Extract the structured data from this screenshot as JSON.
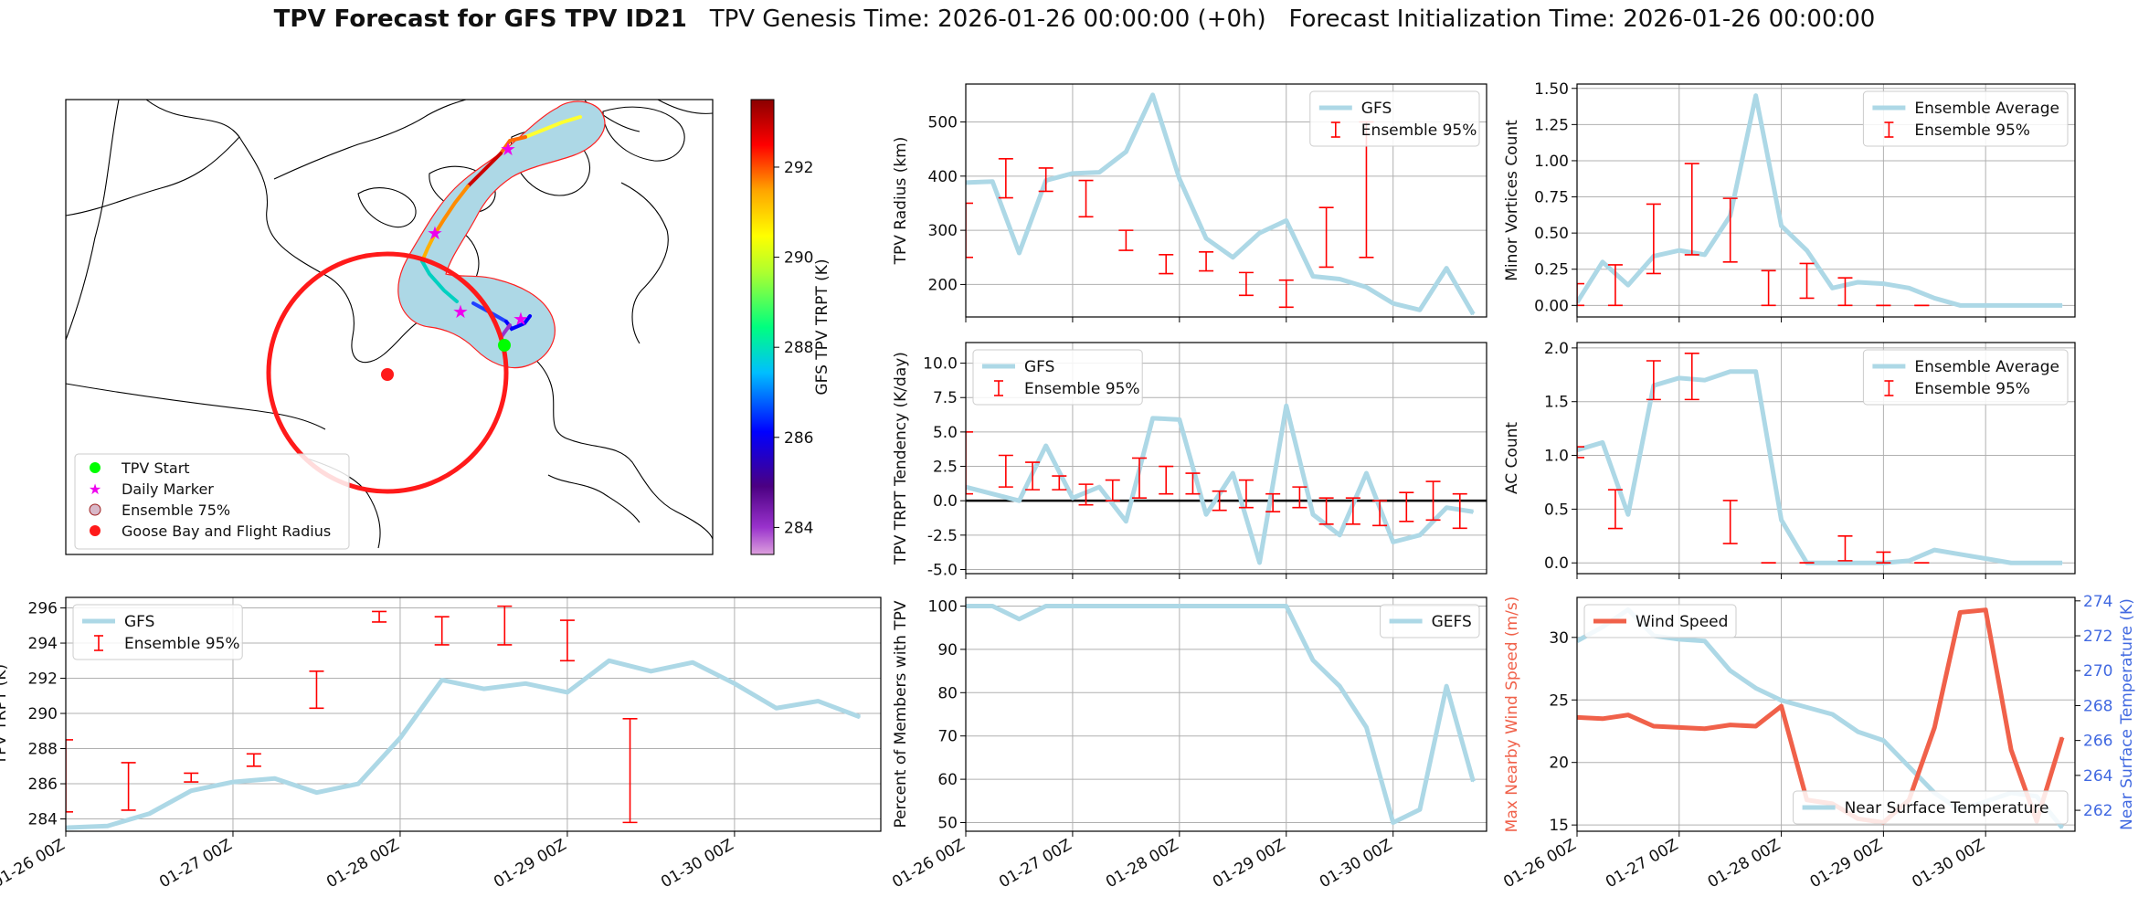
{
  "title": {
    "main": "TPV Forecast for GFS TPV ID21",
    "genesis": "TPV Genesis Time: 2026-01-26 00:00:00 (+0h)",
    "init": "Forecast Initialization Time: 2026-01-26 00:00:00"
  },
  "colors": {
    "gfs": "#add8e6",
    "ensemble": "#ff0000",
    "wind": "#f0614a",
    "temp": "#4169e1",
    "map_fill": "#add8e6"
  },
  "map": {
    "legend": [
      "TPV Start",
      "Daily Marker",
      "Ensemble 75%",
      "Goose Bay and Flight Radius"
    ],
    "legend_colors": [
      "#00ff00",
      "#ee00ee",
      "#d8b8c8",
      "#ff0000"
    ],
    "colorbar": {
      "label": "GFS TPV TRPT (K)",
      "ticks": [
        284,
        286,
        288,
        290,
        292
      ],
      "range": [
        283.4,
        293.5
      ]
    }
  },
  "time_ticks": [
    "01-26 00Z",
    "01-27 00Z",
    "01-28 00Z",
    "01-29 00Z",
    "01-30 00Z"
  ],
  "chart_data": [
    {
      "id": "radius",
      "type": "line",
      "ylabel": "TPV Radius (km)",
      "ylim": [
        140,
        570
      ],
      "yticks": [
        200,
        300,
        400,
        500
      ],
      "legend": [
        "GFS",
        "Ensemble 95%"
      ],
      "legend_pos": "top-right",
      "line": [
        388,
        390,
        258,
        392,
        405,
        407,
        445,
        550,
        395,
        285,
        250,
        295,
        318,
        215,
        210,
        195,
        165,
        153,
        230,
        145
      ],
      "errors": [
        [
          0,
          250,
          350
        ],
        [
          1.5,
          360,
          432
        ],
        [
          3,
          372,
          415
        ],
        [
          4.5,
          325,
          392
        ],
        [
          6,
          263,
          300
        ],
        [
          7.5,
          220,
          255
        ],
        [
          9,
          225,
          260
        ],
        [
          10.5,
          180,
          222
        ],
        [
          12,
          158,
          208
        ],
        [
          13.5,
          232,
          342
        ],
        [
          15,
          250,
          500
        ]
      ]
    },
    {
      "id": "minor",
      "type": "line",
      "ylabel": "Minor Vortices Count",
      "ylim": [
        -0.08,
        1.53
      ],
      "yticks": [
        0.0,
        0.25,
        0.5,
        0.75,
        1.0,
        1.25,
        1.5
      ],
      "legend": [
        "Ensemble Average",
        "Ensemble 95%"
      ],
      "legend_pos": "top-right",
      "line": [
        0.02,
        0.3,
        0.14,
        0.34,
        0.38,
        0.35,
        0.62,
        1.45,
        0.55,
        0.38,
        0.12,
        0.16,
        0.15,
        0.12,
        0.05,
        0.0,
        0.0,
        0.0,
        0.0,
        0.0
      ],
      "errors": [
        [
          0,
          0.0,
          0.15
        ],
        [
          1.5,
          0.0,
          0.28
        ],
        [
          3,
          0.22,
          0.7
        ],
        [
          4.5,
          0.35,
          0.98
        ],
        [
          6,
          0.3,
          0.74
        ],
        [
          7.5,
          0.0,
          0.24
        ],
        [
          9,
          0.05,
          0.29
        ],
        [
          10.5,
          0.0,
          0.19
        ],
        [
          12,
          0.0,
          0.0
        ],
        [
          13.5,
          0.0,
          0.0
        ]
      ]
    },
    {
      "id": "tendency",
      "type": "line",
      "ylabel": "TPV TRPT Tendency (K/day)",
      "ylim": [
        -5.3,
        11.5
      ],
      "yticks": [
        -5.0,
        -2.5,
        0.0,
        2.5,
        5.0,
        7.5,
        10.0
      ],
      "legend": [
        "GFS",
        "Ensemble 95%"
      ],
      "legend_pos": "top-left",
      "line": [
        1.0,
        0.5,
        0.0,
        4.0,
        0.2,
        1.0,
        -1.5,
        6.0,
        5.9,
        -1.0,
        2.0,
        -4.5,
        6.9,
        -1.0,
        -2.5,
        2.0,
        -3.0,
        -2.5,
        -0.5,
        -0.8
      ],
      "errors": [
        [
          0,
          0.5,
          5.0
        ],
        [
          1.5,
          1.0,
          3.3
        ],
        [
          2.5,
          0.8,
          2.8
        ],
        [
          3.5,
          0.8,
          1.8
        ],
        [
          4.5,
          -0.3,
          1.2
        ],
        [
          5.5,
          0.0,
          1.5
        ],
        [
          6.5,
          0.2,
          3.1
        ],
        [
          7.5,
          0.5,
          2.5
        ],
        [
          8.5,
          0.5,
          2.0
        ],
        [
          9.5,
          -0.7,
          0.7
        ],
        [
          10.5,
          -0.5,
          1.5
        ],
        [
          11.5,
          -0.8,
          0.5
        ],
        [
          12.5,
          -0.5,
          1.0
        ],
        [
          13.5,
          -1.7,
          0.2
        ],
        [
          14.5,
          -1.7,
          0.2
        ],
        [
          15.5,
          -1.8,
          0.0
        ],
        [
          16.5,
          -1.5,
          0.6
        ],
        [
          17.5,
          -1.4,
          1.4
        ],
        [
          18.5,
          -2.0,
          0.5
        ],
        [
          20,
          0.0,
          10.5
        ]
      ],
      "hline": 0
    },
    {
      "id": "ac",
      "type": "line",
      "ylabel": "AC Count",
      "ylim": [
        -0.1,
        2.05
      ],
      "yticks": [
        0.0,
        0.5,
        1.0,
        1.5,
        2.0
      ],
      "legend": [
        "Ensemble Average",
        "Ensemble 95%"
      ],
      "legend_pos": "top-right",
      "line": [
        1.05,
        1.12,
        0.45,
        1.65,
        1.72,
        1.7,
        1.78,
        1.78,
        0.4,
        0.0,
        0.0,
        0.0,
        0.0,
        0.02,
        0.12,
        0.08,
        0.04,
        0.0,
        0.0,
        0.0
      ],
      "errors": [
        [
          0,
          0.98,
          1.08
        ],
        [
          1.5,
          0.32,
          0.68
        ],
        [
          3,
          1.52,
          1.88
        ],
        [
          4.5,
          1.52,
          1.95
        ],
        [
          6,
          0.18,
          0.58
        ],
        [
          7.5,
          0.0,
          0.0
        ],
        [
          9,
          0.0,
          0.0
        ],
        [
          10.5,
          0.02,
          0.25
        ],
        [
          12,
          0.0,
          0.1
        ],
        [
          13.5,
          0.0,
          0.0
        ]
      ]
    },
    {
      "id": "trpt",
      "type": "line",
      "ylabel": "TPV TRPT (K)",
      "ylim": [
        283.3,
        296.6
      ],
      "yticks": [
        284,
        286,
        288,
        290,
        292,
        294,
        296
      ],
      "legend": [
        "GFS",
        "Ensemble 95%"
      ],
      "legend_pos": "top-left",
      "line": [
        283.5,
        283.6,
        284.3,
        285.6,
        286.1,
        286.3,
        285.5,
        286.0,
        288.6,
        291.9,
        291.4,
        291.7,
        291.2,
        293.0,
        292.4,
        292.9,
        291.7,
        290.3,
        290.7,
        289.8
      ],
      "errors": [
        [
          0,
          284.4,
          288.5
        ],
        [
          1.5,
          284.5,
          287.2
        ],
        [
          3,
          286.1,
          286.6
        ],
        [
          4.5,
          287.0,
          287.7
        ],
        [
          6,
          290.3,
          292.4
        ],
        [
          7.5,
          295.2,
          295.8
        ],
        [
          9,
          293.9,
          295.5
        ],
        [
          10.5,
          293.9,
          296.1
        ],
        [
          12,
          293.0,
          295.3
        ],
        [
          13.5,
          283.8,
          289.7
        ]
      ]
    },
    {
      "id": "percent",
      "type": "line",
      "ylabel": "Percent of Members with TPV",
      "ylim": [
        48,
        102
      ],
      "yticks": [
        50,
        60,
        70,
        80,
        90,
        100
      ],
      "legend": [
        "GEFS"
      ],
      "legend_pos": "top-right",
      "line": [
        100,
        100,
        97,
        100,
        100,
        100,
        100,
        100,
        100,
        100,
        100,
        100,
        100,
        87.5,
        81.5,
        72,
        50,
        53,
        81.5,
        59.5
      ]
    },
    {
      "id": "wind_temp",
      "type": "line",
      "ylabel": "Max Nearby Wind Speed (m/s)",
      "ylabel2": "Near Surface Temperature (K)",
      "ylim": [
        14.5,
        33.2
      ],
      "yticks": [
        15,
        20,
        25,
        30
      ],
      "ylim2": [
        260.8,
        274.2
      ],
      "yticks2": [
        262,
        264,
        266,
        268,
        270,
        272,
        274
      ],
      "legend": [
        "Wind Speed"
      ],
      "legend_pos": "top-left",
      "legend2": [
        "Near Surface Temperature"
      ],
      "legend2_pos": "lower-right",
      "wind": [
        23.6,
        23.5,
        23.8,
        22.9,
        22.8,
        22.7,
        23.0,
        22.9,
        24.5,
        17.0,
        16.7,
        15.5,
        15.2,
        17.0,
        22.8,
        32.0,
        32.2,
        21.0,
        15.3,
        22.0
      ],
      "temp": [
        271.7,
        272.5,
        273.5,
        272.0,
        271.8,
        271.7,
        270.0,
        269.0,
        268.3,
        267.9,
        267.5,
        266.5,
        266.0,
        264.5,
        263.0,
        262.0,
        262.5,
        263.0,
        262.8,
        261.0
      ]
    }
  ]
}
